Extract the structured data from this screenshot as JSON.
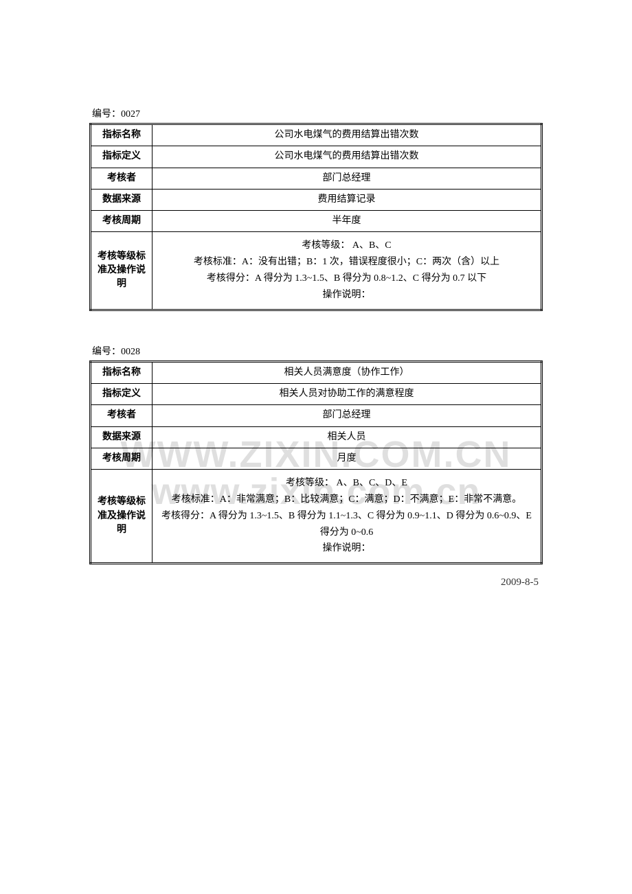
{
  "tables": [
    {
      "header_label": "编号：",
      "header_value": "0027",
      "rows": [
        {
          "label": "指标名称",
          "value": "公司水电煤气的费用结算出错次数"
        },
        {
          "label": "指标定义",
          "value": "公司水电煤气的费用结算出错次数"
        },
        {
          "label": "考核者",
          "value": "部门总经理"
        },
        {
          "label": "数据来源",
          "value": "费用结算记录"
        },
        {
          "label": "考核周期",
          "value": "半年度"
        },
        {
          "label": "考核等级标准及操作说明",
          "multiline": [
            "考核等级： A、B、C",
            "考核标准：A：没有出错；B：1 次，错误程度很小；C：两次（含）以上",
            "考核得分：A 得分为 1.3~1.5、B 得分为 0.8~1.2、C 得分为 0.7 以下",
            "操作说明："
          ]
        }
      ]
    },
    {
      "header_label": "编号：",
      "header_value": "0028",
      "rows": [
        {
          "label": "指标名称",
          "value": "相关人员满意度（协作工作）"
        },
        {
          "label": "指标定义",
          "value": "相关人员对协助工作的满意程度"
        },
        {
          "label": "考核者",
          "value": "部门总经理"
        },
        {
          "label": "数据来源",
          "value": "相关人员"
        },
        {
          "label": "考核周期",
          "value": "月度"
        },
        {
          "label": "考核等级标准及操作说明",
          "multiline": [
            "考核等级： A、B、C、D、E",
            "考核标准：A：非常满意；B：比较满意；C：满意；D：不满意；E：非常不满意。",
            "考核得分：A 得分为 1.3~1.5、B 得分为 1.1~1.3、C 得分为 0.9~1.1、D 得分为 0.6~0.9、E",
            "得分为 0~0.6",
            "操作说明："
          ]
        }
      ]
    }
  ],
  "footer_date": "2009-8-5",
  "watermark": {
    "line1": "WWW.ZIXIN.COM.CN",
    "line2": "www.zixin.com.cn"
  },
  "colors": {
    "text": "#000000",
    "background": "#ffffff",
    "border": "#000000",
    "watermark": "#888888"
  }
}
